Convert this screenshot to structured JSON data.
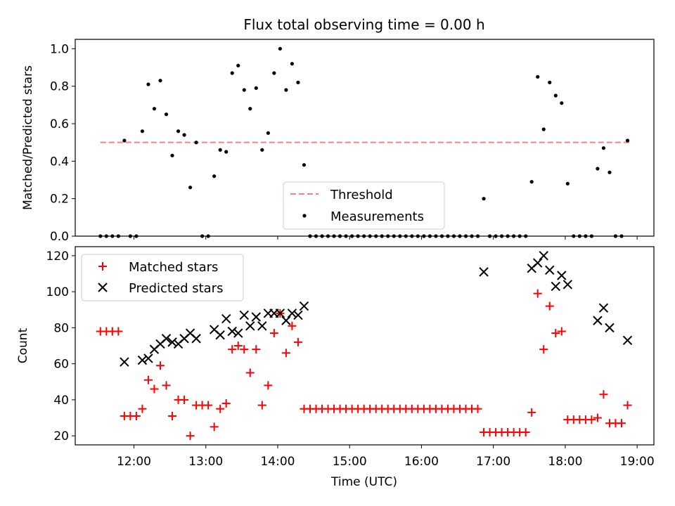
{
  "chart_data": [
    {
      "type": "scatter",
      "title": "Flux total observing time = 0.00 h",
      "xlabel": "",
      "ylabel": "Matched/Predicted stars",
      "xlim": [
        "11:11",
        "19:14"
      ],
      "ylim": [
        0,
        1.05
      ],
      "yticks": [
        0.0,
        0.2,
        0.4,
        0.6,
        0.8,
        1.0
      ],
      "ytick_labels": [
        "0.0",
        "0.2",
        "0.4",
        "0.6",
        "0.8",
        "1.0"
      ],
      "grid": false,
      "legend": "lower-center",
      "threshold": {
        "name": "Threshold",
        "y": 0.5,
        "x_range": [
          "11:32",
          "18:54"
        ],
        "color": "#ff7f7f",
        "style": "dashed"
      },
      "series": [
        {
          "name": "Measurements",
          "color": "#000000",
          "marker": "dot",
          "points": [
            [
              "11:32",
              0.0
            ],
            [
              "11:37",
              0.0
            ],
            [
              "11:42",
              0.0
            ],
            [
              "11:47",
              0.0
            ],
            [
              "11:52",
              0.51
            ],
            [
              "11:57",
              0.0
            ],
            [
              "12:02",
              0.0
            ],
            [
              "12:07",
              0.56
            ],
            [
              "12:12",
              0.81
            ],
            [
              "12:17",
              0.68
            ],
            [
              "12:22",
              0.83
            ],
            [
              "12:27",
              0.65
            ],
            [
              "12:32",
              0.43
            ],
            [
              "12:37",
              0.56
            ],
            [
              "12:42",
              0.54
            ],
            [
              "12:47",
              0.26
            ],
            [
              "12:52",
              0.5
            ],
            [
              "12:57",
              0.0
            ],
            [
              "13:02",
              0.0
            ],
            [
              "13:07",
              0.32
            ],
            [
              "13:12",
              0.46
            ],
            [
              "13:17",
              0.45
            ],
            [
              "13:22",
              0.87
            ],
            [
              "13:27",
              0.91
            ],
            [
              "13:32",
              0.78
            ],
            [
              "13:37",
              0.68
            ],
            [
              "13:42",
              0.79
            ],
            [
              "13:47",
              0.46
            ],
            [
              "13:52",
              0.55
            ],
            [
              "13:57",
              0.87
            ],
            [
              "14:02",
              1.0
            ],
            [
              "14:07",
              0.78
            ],
            [
              "14:12",
              0.92
            ],
            [
              "14:17",
              0.82
            ],
            [
              "14:22",
              0.38
            ],
            [
              "14:27",
              0.0
            ],
            [
              "14:32",
              0.0
            ],
            [
              "14:37",
              0.0
            ],
            [
              "14:42",
              0.0
            ],
            [
              "14:47",
              0.0
            ],
            [
              "14:52",
              0.0
            ],
            [
              "14:57",
              0.0
            ],
            [
              "15:02",
              0.0
            ],
            [
              "15:07",
              0.0
            ],
            [
              "15:12",
              0.0
            ],
            [
              "15:17",
              0.0
            ],
            [
              "15:22",
              0.0
            ],
            [
              "15:27",
              0.0
            ],
            [
              "15:32",
              0.0
            ],
            [
              "15:37",
              0.0
            ],
            [
              "15:42",
              0.0
            ],
            [
              "15:47",
              0.0
            ],
            [
              "15:52",
              0.0
            ],
            [
              "15:57",
              0.0
            ],
            [
              "16:02",
              0.0
            ],
            [
              "16:07",
              0.0
            ],
            [
              "16:12",
              0.0
            ],
            [
              "16:17",
              0.0
            ],
            [
              "16:22",
              0.0
            ],
            [
              "16:27",
              0.0
            ],
            [
              "16:32",
              0.0
            ],
            [
              "16:37",
              0.0
            ],
            [
              "16:42",
              0.0
            ],
            [
              "16:47",
              0.0
            ],
            [
              "16:52",
              0.2
            ],
            [
              "16:57",
              0.0
            ],
            [
              "17:02",
              0.0
            ],
            [
              "17:07",
              0.0
            ],
            [
              "17:12",
              0.0
            ],
            [
              "17:17",
              0.0
            ],
            [
              "17:22",
              0.0
            ],
            [
              "17:27",
              0.0
            ],
            [
              "17:32",
              0.29
            ],
            [
              "17:37",
              0.85
            ],
            [
              "17:42",
              0.57
            ],
            [
              "17:47",
              0.82
            ],
            [
              "17:52",
              0.75
            ],
            [
              "17:57",
              0.71
            ],
            [
              "18:02",
              0.28
            ],
            [
              "18:07",
              0.0
            ],
            [
              "18:12",
              0.0
            ],
            [
              "18:17",
              0.0
            ],
            [
              "18:22",
              0.0
            ],
            [
              "18:27",
              0.36
            ],
            [
              "18:32",
              0.47
            ],
            [
              "18:37",
              0.34
            ],
            [
              "18:42",
              0.0
            ],
            [
              "18:47",
              0.0
            ],
            [
              "18:52",
              0.51
            ]
          ]
        }
      ]
    },
    {
      "type": "scatter",
      "title": "",
      "xlabel": "Time (UTC)",
      "ylabel": "Count",
      "xlim": [
        "11:11",
        "19:14"
      ],
      "ylim": [
        15,
        125
      ],
      "yticks": [
        20,
        40,
        60,
        80,
        100,
        120
      ],
      "xticks": [
        "12:00",
        "13:00",
        "14:00",
        "15:00",
        "16:00",
        "17:00",
        "18:00",
        "19:00"
      ],
      "grid": false,
      "legend": "top-left",
      "series": [
        {
          "name": "Matched stars",
          "color": "#ff0000",
          "marker": "plus",
          "points": [
            [
              "11:32",
              78
            ],
            [
              "11:37",
              78
            ],
            [
              "11:42",
              78
            ],
            [
              "11:47",
              78
            ],
            [
              "11:52",
              31
            ],
            [
              "11:57",
              31
            ],
            [
              "12:02",
              31
            ],
            [
              "12:07",
              35
            ],
            [
              "12:12",
              51
            ],
            [
              "12:17",
              46
            ],
            [
              "12:22",
              59
            ],
            [
              "12:27",
              48
            ],
            [
              "12:32",
              31
            ],
            [
              "12:37",
              40
            ],
            [
              "12:42",
              40
            ],
            [
              "12:47",
              20
            ],
            [
              "12:52",
              37
            ],
            [
              "12:57",
              37
            ],
            [
              "13:02",
              37
            ],
            [
              "13:07",
              25
            ],
            [
              "13:12",
              35
            ],
            [
              "13:17",
              38
            ],
            [
              "13:22",
              68
            ],
            [
              "13:27",
              70
            ],
            [
              "13:32",
              68
            ],
            [
              "13:37",
              55
            ],
            [
              "13:42",
              68
            ],
            [
              "13:47",
              37
            ],
            [
              "13:52",
              48
            ],
            [
              "13:57",
              77
            ],
            [
              "14:02",
              88
            ],
            [
              "14:07",
              66
            ],
            [
              "14:12",
              81
            ],
            [
              "14:17",
              72
            ],
            [
              "14:22",
              35
            ],
            [
              "14:27",
              35
            ],
            [
              "14:32",
              35
            ],
            [
              "14:37",
              35
            ],
            [
              "14:42",
              35
            ],
            [
              "14:47",
              35
            ],
            [
              "14:52",
              35
            ],
            [
              "14:57",
              35
            ],
            [
              "15:02",
              35
            ],
            [
              "15:07",
              35
            ],
            [
              "15:12",
              35
            ],
            [
              "15:17",
              35
            ],
            [
              "15:22",
              35
            ],
            [
              "15:27",
              35
            ],
            [
              "15:32",
              35
            ],
            [
              "15:37",
              35
            ],
            [
              "15:42",
              35
            ],
            [
              "15:47",
              35
            ],
            [
              "15:52",
              35
            ],
            [
              "15:57",
              35
            ],
            [
              "16:02",
              35
            ],
            [
              "16:07",
              35
            ],
            [
              "16:12",
              35
            ],
            [
              "16:17",
              35
            ],
            [
              "16:22",
              35
            ],
            [
              "16:27",
              35
            ],
            [
              "16:32",
              35
            ],
            [
              "16:37",
              35
            ],
            [
              "16:42",
              35
            ],
            [
              "16:47",
              35
            ],
            [
              "16:52",
              22
            ],
            [
              "16:57",
              22
            ],
            [
              "17:02",
              22
            ],
            [
              "17:07",
              22
            ],
            [
              "17:12",
              22
            ],
            [
              "17:17",
              22
            ],
            [
              "17:22",
              22
            ],
            [
              "17:27",
              22
            ],
            [
              "17:32",
              33
            ],
            [
              "17:37",
              99
            ],
            [
              "17:42",
              68
            ],
            [
              "17:47",
              92
            ],
            [
              "17:52",
              77
            ],
            [
              "17:57",
              78
            ],
            [
              "18:02",
              29
            ],
            [
              "18:07",
              29
            ],
            [
              "18:12",
              29
            ],
            [
              "18:17",
              29
            ],
            [
              "18:22",
              29
            ],
            [
              "18:27",
              30
            ],
            [
              "18:32",
              43
            ],
            [
              "18:37",
              27
            ],
            [
              "18:42",
              27
            ],
            [
              "18:47",
              27
            ],
            [
              "18:52",
              37
            ]
          ]
        },
        {
          "name": "Predicted stars",
          "color": "#000000",
          "marker": "x",
          "points": [
            [
              "11:52",
              61
            ],
            [
              "12:07",
              62
            ],
            [
              "12:12",
              63
            ],
            [
              "12:17",
              68
            ],
            [
              "12:22",
              71
            ],
            [
              "12:27",
              74
            ],
            [
              "12:32",
              72
            ],
            [
              "12:37",
              71
            ],
            [
              "12:42",
              74
            ],
            [
              "12:47",
              77
            ],
            [
              "12:52",
              74
            ],
            [
              "13:07",
              79
            ],
            [
              "13:12",
              76
            ],
            [
              "13:17",
              85
            ],
            [
              "13:22",
              78
            ],
            [
              "13:27",
              77
            ],
            [
              "13:32",
              87
            ],
            [
              "13:37",
              81
            ],
            [
              "13:42",
              86
            ],
            [
              "13:47",
              81
            ],
            [
              "13:52",
              88
            ],
            [
              "13:57",
              88
            ],
            [
              "14:02",
              88
            ],
            [
              "14:07",
              84
            ],
            [
              "14:12",
              88
            ],
            [
              "14:17",
              87
            ],
            [
              "14:22",
              92
            ],
            [
              "16:52",
              111
            ],
            [
              "17:32",
              113
            ],
            [
              "17:37",
              116
            ],
            [
              "17:42",
              120
            ],
            [
              "17:47",
              112
            ],
            [
              "17:52",
              103
            ],
            [
              "17:57",
              109
            ],
            [
              "18:02",
              104
            ],
            [
              "18:27",
              84
            ],
            [
              "18:32",
              91
            ],
            [
              "18:37",
              80
            ],
            [
              "18:52",
              73
            ]
          ]
        }
      ]
    }
  ]
}
